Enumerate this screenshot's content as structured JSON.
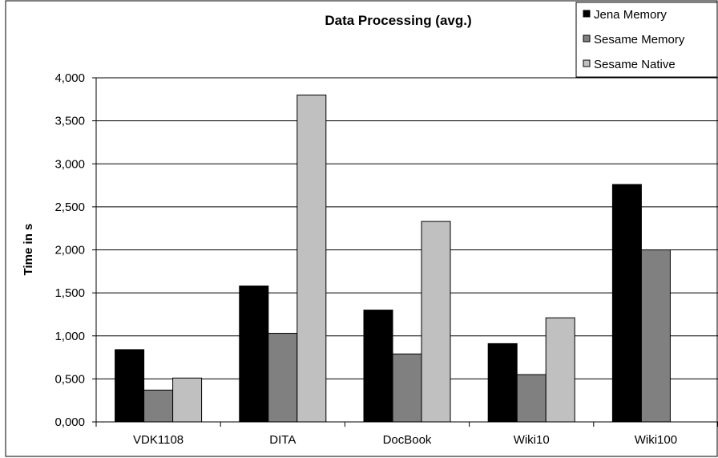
{
  "chart_data": {
    "type": "bar",
    "title": "Data Processing (avg.)",
    "xlabel": "",
    "ylabel": "Time in s",
    "categories": [
      "VDK1108",
      "DITA",
      "DocBook",
      "Wiki10",
      "Wiki100"
    ],
    "series": [
      {
        "name": "Jena Memory",
        "color": "#000000",
        "values": [
          0.84,
          1.58,
          1.3,
          0.91,
          2.76
        ]
      },
      {
        "name": "Sesame Memory",
        "color": "#808080",
        "values": [
          0.37,
          1.03,
          0.79,
          0.55,
          2.0
        ]
      },
      {
        "name": "Sesame Native",
        "color": "#c0c0c0",
        "values": [
          0.51,
          3.8,
          2.33,
          1.21,
          null
        ]
      }
    ],
    "ylim": [
      0,
      4
    ],
    "yticks": [
      0,
      0.5,
      1.0,
      1.5,
      2.0,
      2.5,
      3.0,
      3.5,
      4.0
    ],
    "ytick_labels": [
      "0,000",
      "0,500",
      "1,000",
      "1,500",
      "2,000",
      "2,500",
      "3,000",
      "3,500",
      "4,000"
    ],
    "grid": true,
    "legend_position": "top-right"
  }
}
